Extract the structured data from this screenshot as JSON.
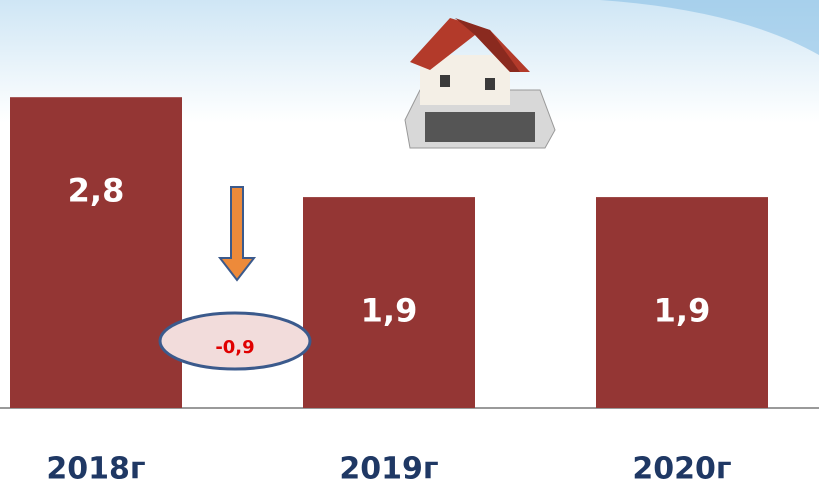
{
  "chart_data": {
    "type": "bar",
    "categories": [
      "2018г",
      "2019г",
      "2020г"
    ],
    "values": [
      2.8,
      1.9,
      1.9
    ],
    "value_labels": [
      "2,8",
      "1,9",
      "1,9"
    ],
    "color": "#943634",
    "annotation": "-0,9"
  }
}
